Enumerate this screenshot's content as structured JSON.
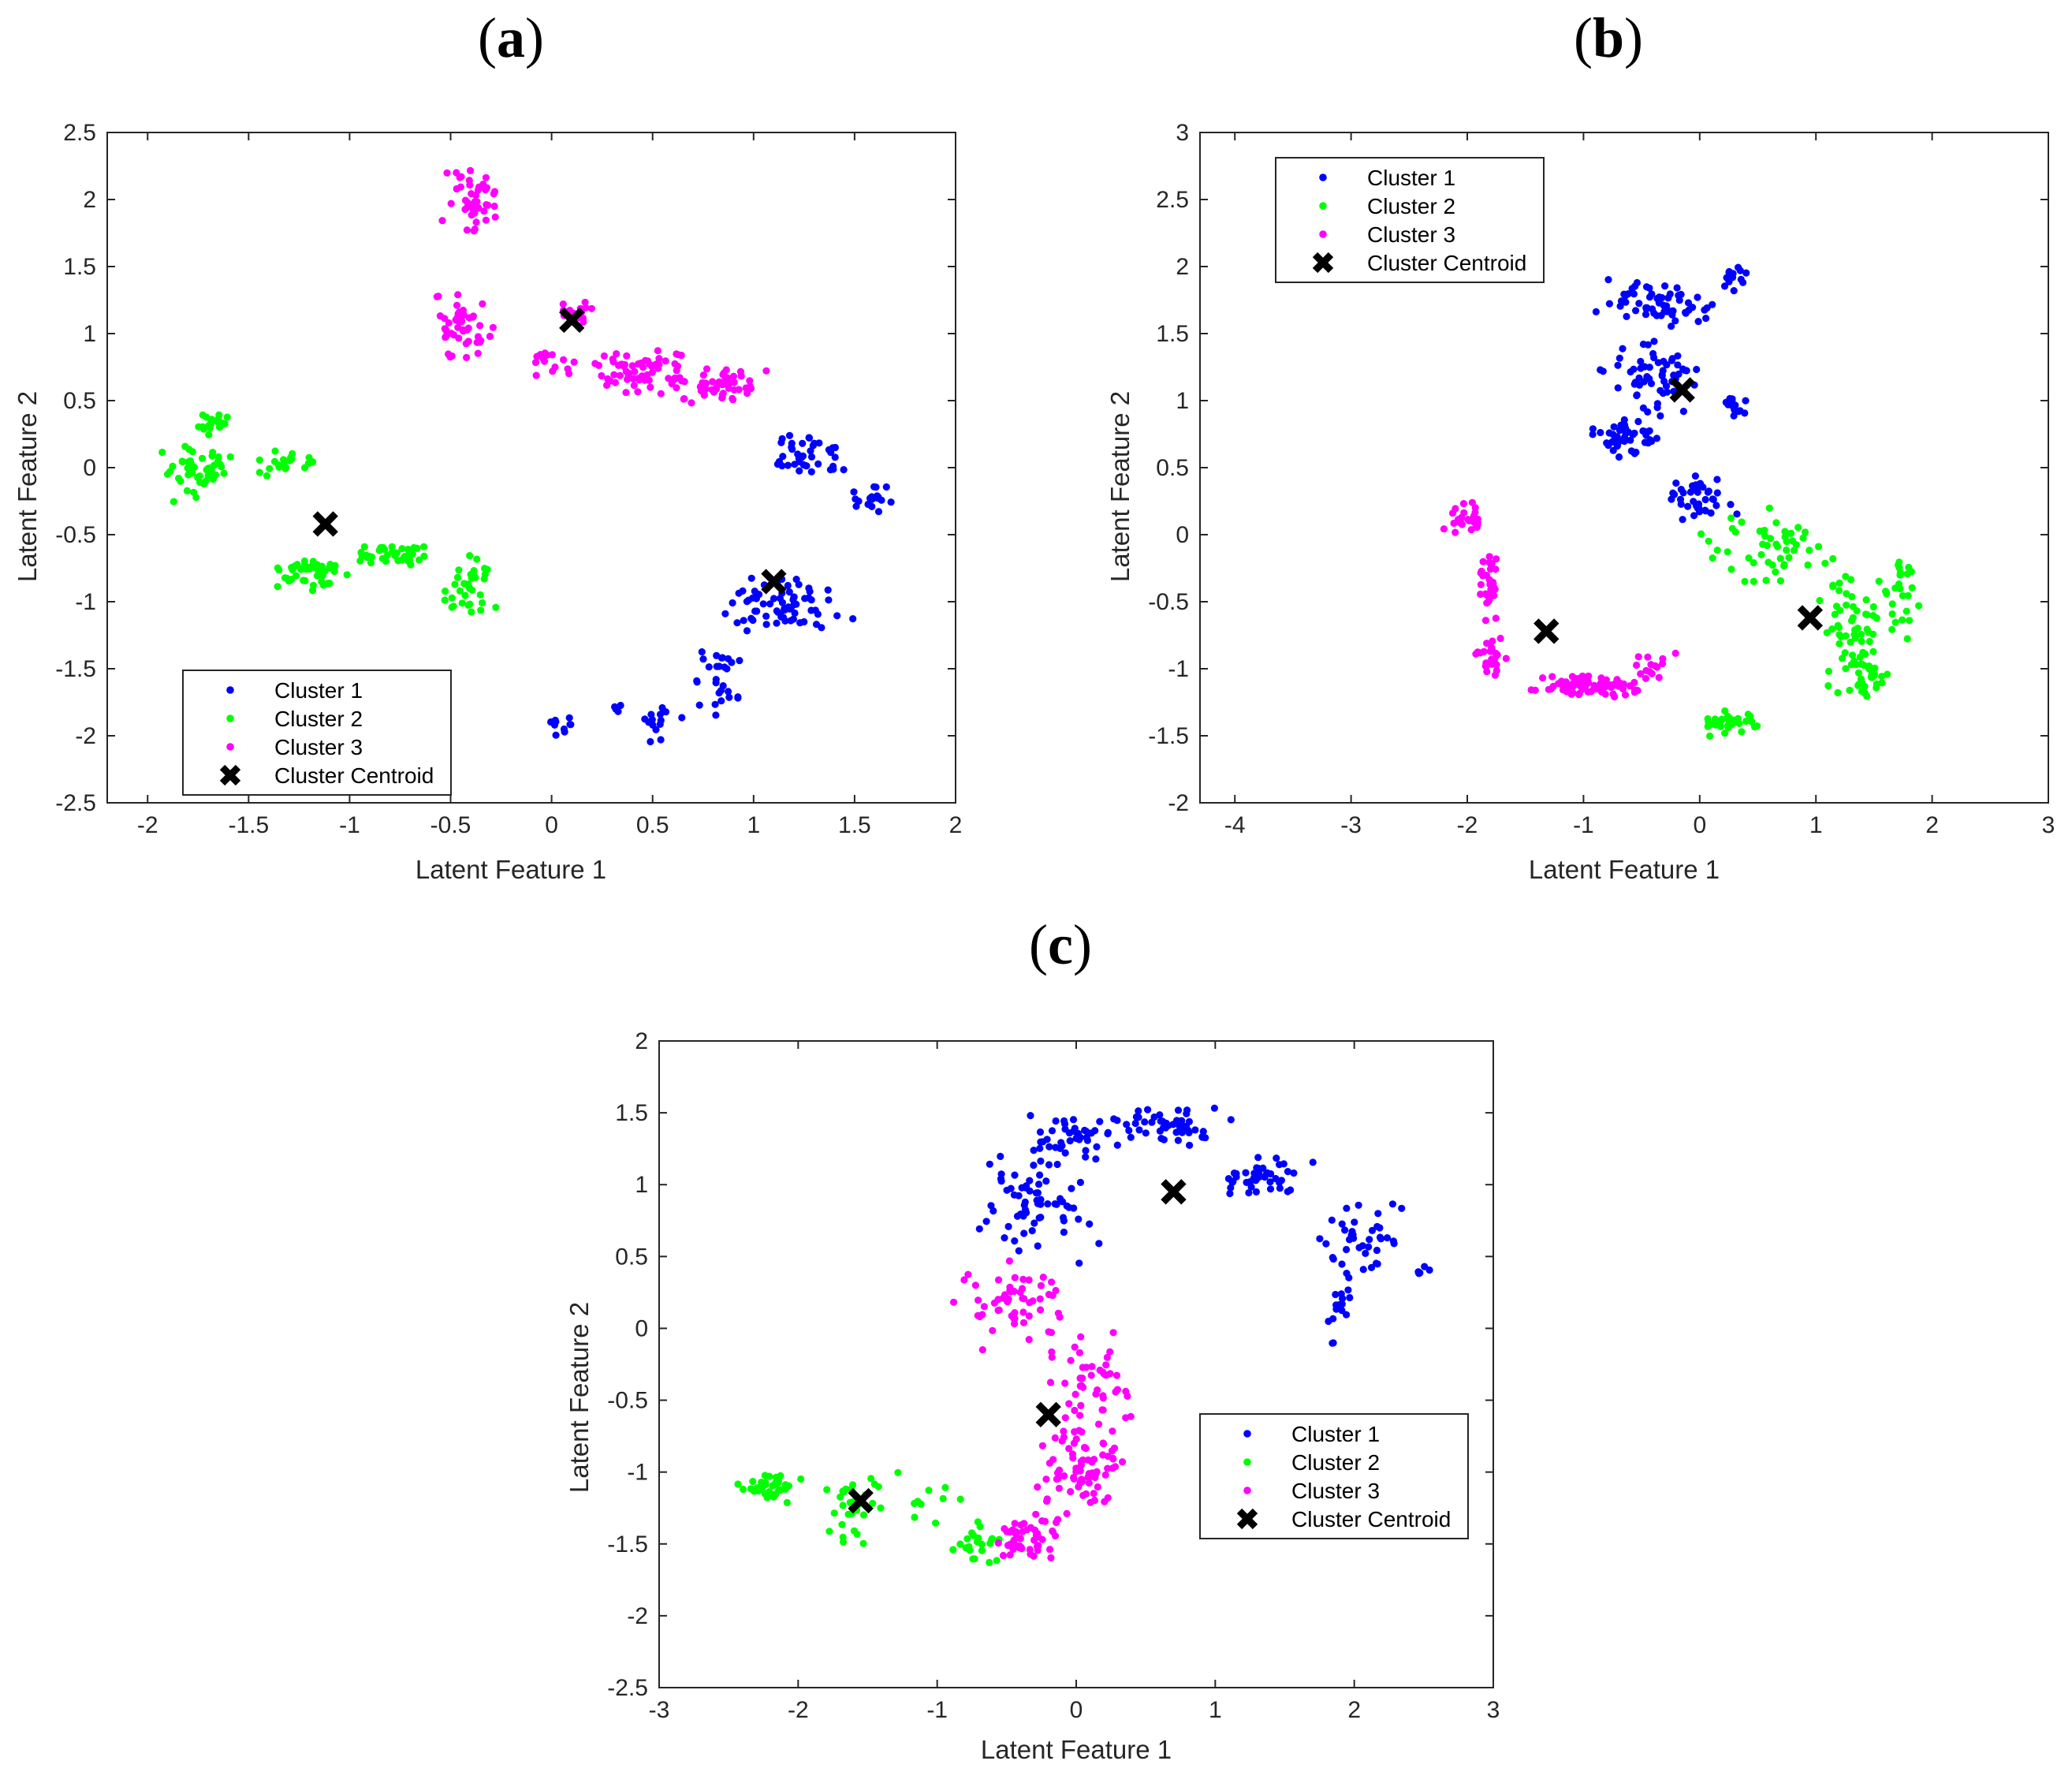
{
  "chart_data": [
    {
      "type": "scatter",
      "panel_label": "a",
      "xlabel": "Latent Feature 1",
      "ylabel": "Latent Feature 2",
      "xlim": [
        -2.2,
        2
      ],
      "ylim": [
        -2.5,
        2.5
      ],
      "xticks": [
        -2,
        -1.5,
        -1,
        -0.5,
        0,
        0.5,
        1,
        1.5,
        2
      ],
      "yticks": [
        -2.5,
        -2,
        -1.5,
        -1,
        -0.5,
        0,
        0.5,
        1,
        1.5,
        2,
        2.5
      ],
      "legend_position": "bottom-left",
      "legend": [
        "Cluster 1",
        "Cluster 2",
        "Cluster 3",
        "Cluster Centroid"
      ],
      "colors": {
        "Cluster 1": "#0000ff",
        "Cluster 2": "#00ff00",
        "Cluster 3": "#ff00ff",
        "Cluster Centroid": "#000000"
      },
      "centroids": [
        [
          1.1,
          -0.85
        ],
        [
          -1.12,
          -0.42
        ],
        [
          0.1,
          1.1
        ]
      ],
      "regions": [
        {
          "series": "Cluster 1",
          "n": 70,
          "center": [
            1.15,
            -1.05
          ],
          "spread": [
            0.22,
            0.18
          ]
        },
        {
          "series": "Cluster 1",
          "n": 28,
          "center": [
            0.85,
            -1.55
          ],
          "spread": [
            0.12,
            0.2
          ]
        },
        {
          "series": "Cluster 1",
          "n": 40,
          "center": [
            1.3,
            0.1
          ],
          "spread": [
            0.13,
            0.13
          ]
        },
        {
          "series": "Cluster 1",
          "n": 18,
          "center": [
            1.58,
            -0.25
          ],
          "spread": [
            0.07,
            0.08
          ]
        },
        {
          "series": "Cluster 1",
          "n": 10,
          "center": [
            0.05,
            -1.95
          ],
          "spread": [
            0.05,
            0.08
          ]
        },
        {
          "series": "Cluster 1",
          "n": 14,
          "center": [
            0.55,
            -1.92
          ],
          "spread": [
            0.08,
            0.1
          ]
        },
        {
          "series": "Cluster 1",
          "n": 4,
          "center": [
            0.35,
            -1.78
          ],
          "spread": [
            0.05,
            0.04
          ]
        },
        {
          "series": "Cluster 2",
          "n": 45,
          "center": [
            -1.75,
            -0.05
          ],
          "spread": [
            0.15,
            0.15
          ]
        },
        {
          "series": "Cluster 2",
          "n": 20,
          "center": [
            -1.32,
            0.05
          ],
          "spread": [
            0.1,
            0.1
          ]
        },
        {
          "series": "Cluster 2",
          "n": 20,
          "center": [
            -1.68,
            0.32
          ],
          "spread": [
            0.07,
            0.06
          ]
        },
        {
          "series": "Cluster 2",
          "n": 40,
          "center": [
            -1.2,
            -0.8
          ],
          "spread": [
            0.13,
            0.1
          ]
        },
        {
          "series": "Cluster 2",
          "n": 40,
          "center": [
            -0.78,
            -0.65
          ],
          "spread": [
            0.18,
            0.07
          ]
        },
        {
          "series": "Cluster 2",
          "n": 35,
          "center": [
            -0.42,
            -0.88
          ],
          "spread": [
            0.1,
            0.15
          ]
        },
        {
          "series": "Cluster 3",
          "n": 45,
          "center": [
            -0.4,
            2.0
          ],
          "spread": [
            0.1,
            0.18
          ]
        },
        {
          "series": "Cluster 3",
          "n": 50,
          "center": [
            -0.43,
            1.05
          ],
          "spread": [
            0.12,
            0.2
          ]
        },
        {
          "series": "Cluster 3",
          "n": 60,
          "center": [
            0.42,
            0.72
          ],
          "spread": [
            0.18,
            0.12
          ]
        },
        {
          "series": "Cluster 3",
          "n": 60,
          "center": [
            0.82,
            0.62
          ],
          "spread": [
            0.2,
            0.1
          ]
        },
        {
          "series": "Cluster 3",
          "n": 18,
          "center": [
            0.12,
            1.15
          ],
          "spread": [
            0.08,
            0.08
          ]
        },
        {
          "series": "Cluster 3",
          "n": 15,
          "center": [
            0.0,
            0.8
          ],
          "spread": [
            0.08,
            0.08
          ]
        }
      ]
    },
    {
      "type": "scatter",
      "panel_label": "b",
      "xlabel": "Latent Feature 1",
      "ylabel": "Latent Feature 2",
      "xlim": [
        -4.3,
        3
      ],
      "ylim": [
        -2,
        3
      ],
      "xticks": [
        -4,
        -3,
        -2,
        -1,
        0,
        1,
        2,
        3
      ],
      "yticks": [
        -2,
        -1.5,
        -1,
        -0.5,
        0,
        0.5,
        1,
        1.5,
        2,
        2.5,
        3
      ],
      "legend_position": "top-left",
      "legend": [
        "Cluster 1",
        "Cluster 2",
        "Cluster 3",
        "Cluster Centroid"
      ],
      "colors": {
        "Cluster 1": "#0000ff",
        "Cluster 2": "#00ff00",
        "Cluster 3": "#ff00ff",
        "Cluster Centroid": "#000000"
      },
      "centroids": [
        [
          -0.15,
          1.08
        ],
        [
          0.95,
          -0.62
        ],
        [
          -1.32,
          -0.72
        ]
      ],
      "regions": [
        {
          "series": "Cluster 1",
          "n": 60,
          "center": [
            -0.4,
            1.72
          ],
          "spread": [
            0.35,
            0.15
          ]
        },
        {
          "series": "Cluster 1",
          "n": 60,
          "center": [
            -0.35,
            1.15
          ],
          "spread": [
            0.3,
            0.2
          ]
        },
        {
          "series": "Cluster 1",
          "n": 45,
          "center": [
            -0.65,
            0.72
          ],
          "spread": [
            0.22,
            0.12
          ]
        },
        {
          "series": "Cluster 1",
          "n": 40,
          "center": [
            0.0,
            0.3
          ],
          "spread": [
            0.22,
            0.15
          ]
        },
        {
          "series": "Cluster 1",
          "n": 14,
          "center": [
            0.3,
            0.95
          ],
          "spread": [
            0.12,
            0.07
          ]
        },
        {
          "series": "Cluster 1",
          "n": 14,
          "center": [
            0.3,
            1.9
          ],
          "spread": [
            0.14,
            0.08
          ]
        },
        {
          "series": "Cluster 2",
          "n": 50,
          "center": [
            0.6,
            -0.1
          ],
          "spread": [
            0.4,
            0.2
          ]
        },
        {
          "series": "Cluster 2",
          "n": 55,
          "center": [
            1.3,
            -0.7
          ],
          "spread": [
            0.25,
            0.28
          ]
        },
        {
          "series": "Cluster 2",
          "n": 30,
          "center": [
            1.4,
            -1.1
          ],
          "spread": [
            0.2,
            0.12
          ]
        },
        {
          "series": "Cluster 2",
          "n": 35,
          "center": [
            0.25,
            -1.4
          ],
          "spread": [
            0.28,
            0.07
          ]
        },
        {
          "series": "Cluster 2",
          "n": 25,
          "center": [
            1.7,
            -0.45
          ],
          "spread": [
            0.15,
            0.25
          ]
        },
        {
          "series": "Cluster 3",
          "n": 25,
          "center": [
            -2.0,
            0.12
          ],
          "spread": [
            0.15,
            0.08
          ]
        },
        {
          "series": "Cluster 3",
          "n": 35,
          "center": [
            -1.8,
            -0.35
          ],
          "spread": [
            0.08,
            0.2
          ]
        },
        {
          "series": "Cluster 3",
          "n": 25,
          "center": [
            -1.8,
            -0.9
          ],
          "spread": [
            0.08,
            0.12
          ]
        },
        {
          "series": "Cluster 3",
          "n": 80,
          "center": [
            -0.95,
            -1.12
          ],
          "spread": [
            0.35,
            0.06
          ]
        },
        {
          "series": "Cluster 3",
          "n": 15,
          "center": [
            -0.4,
            -1.0
          ],
          "spread": [
            0.12,
            0.1
          ]
        }
      ]
    },
    {
      "type": "scatter",
      "panel_label": "c",
      "xlabel": "Latent Feature 1",
      "ylabel": "Latent Feature 2",
      "xlim": [
        -3,
        3
      ],
      "ylim": [
        -2.5,
        2
      ],
      "xticks": [
        -3,
        -2,
        -1,
        0,
        1,
        2,
        3
      ],
      "yticks": [
        -2.5,
        -2,
        -1.5,
        -1,
        -0.5,
        0,
        0.5,
        1,
        1.5,
        2
      ],
      "legend_position": "bottom-right",
      "legend": [
        "Cluster 1",
        "Cluster 2",
        "Cluster 3",
        "Cluster Centroid"
      ],
      "colors": {
        "Cluster 1": "#0000ff",
        "Cluster 2": "#00ff00",
        "Cluster 3": "#ff00ff",
        "Cluster Centroid": "#000000"
      },
      "centroids": [
        [
          0.7,
          0.95
        ],
        [
          -1.55,
          -1.2
        ],
        [
          -0.2,
          -0.6
        ]
      ],
      "regions": [
        {
          "series": "Cluster 1",
          "n": 70,
          "center": [
            -0.3,
            0.9
          ],
          "spread": [
            0.3,
            0.3
          ]
        },
        {
          "series": "Cluster 1",
          "n": 40,
          "center": [
            0.0,
            1.35
          ],
          "spread": [
            0.3,
            0.12
          ]
        },
        {
          "series": "Cluster 1",
          "n": 50,
          "center": [
            0.65,
            1.42
          ],
          "spread": [
            0.3,
            0.1
          ]
        },
        {
          "series": "Cluster 1",
          "n": 45,
          "center": [
            1.35,
            1.05
          ],
          "spread": [
            0.25,
            0.12
          ]
        },
        {
          "series": "Cluster 1",
          "n": 40,
          "center": [
            2.05,
            0.62
          ],
          "spread": [
            0.2,
            0.22
          ]
        },
        {
          "series": "Cluster 1",
          "n": 15,
          "center": [
            1.9,
            0.1
          ],
          "spread": [
            0.07,
            0.15
          ]
        },
        {
          "series": "Cluster 1",
          "n": 5,
          "center": [
            2.5,
            0.4
          ],
          "spread": [
            0.07,
            0.03
          ]
        },
        {
          "series": "Cluster 2",
          "n": 35,
          "center": [
            -2.2,
            -1.1
          ],
          "spread": [
            0.15,
            0.08
          ]
        },
        {
          "series": "Cluster 2",
          "n": 30,
          "center": [
            -1.6,
            -1.25
          ],
          "spread": [
            0.15,
            0.18
          ]
        },
        {
          "series": "Cluster 2",
          "n": 22,
          "center": [
            -0.75,
            -1.5
          ],
          "spread": [
            0.15,
            0.12
          ]
        },
        {
          "series": "Cluster 2",
          "n": 10,
          "center": [
            -1.1,
            -1.15
          ],
          "spread": [
            0.2,
            0.2
          ]
        },
        {
          "series": "Cluster 3",
          "n": 55,
          "center": [
            -0.45,
            0.15
          ],
          "spread": [
            0.3,
            0.2
          ]
        },
        {
          "series": "Cluster 3",
          "n": 50,
          "center": [
            0.1,
            -0.4
          ],
          "spread": [
            0.25,
            0.25
          ]
        },
        {
          "series": "Cluster 3",
          "n": 70,
          "center": [
            0.05,
            -1.0
          ],
          "spread": [
            0.25,
            0.22
          ]
        },
        {
          "series": "Cluster 3",
          "n": 50,
          "center": [
            -0.35,
            -1.45
          ],
          "spread": [
            0.2,
            0.15
          ]
        }
      ]
    }
  ]
}
